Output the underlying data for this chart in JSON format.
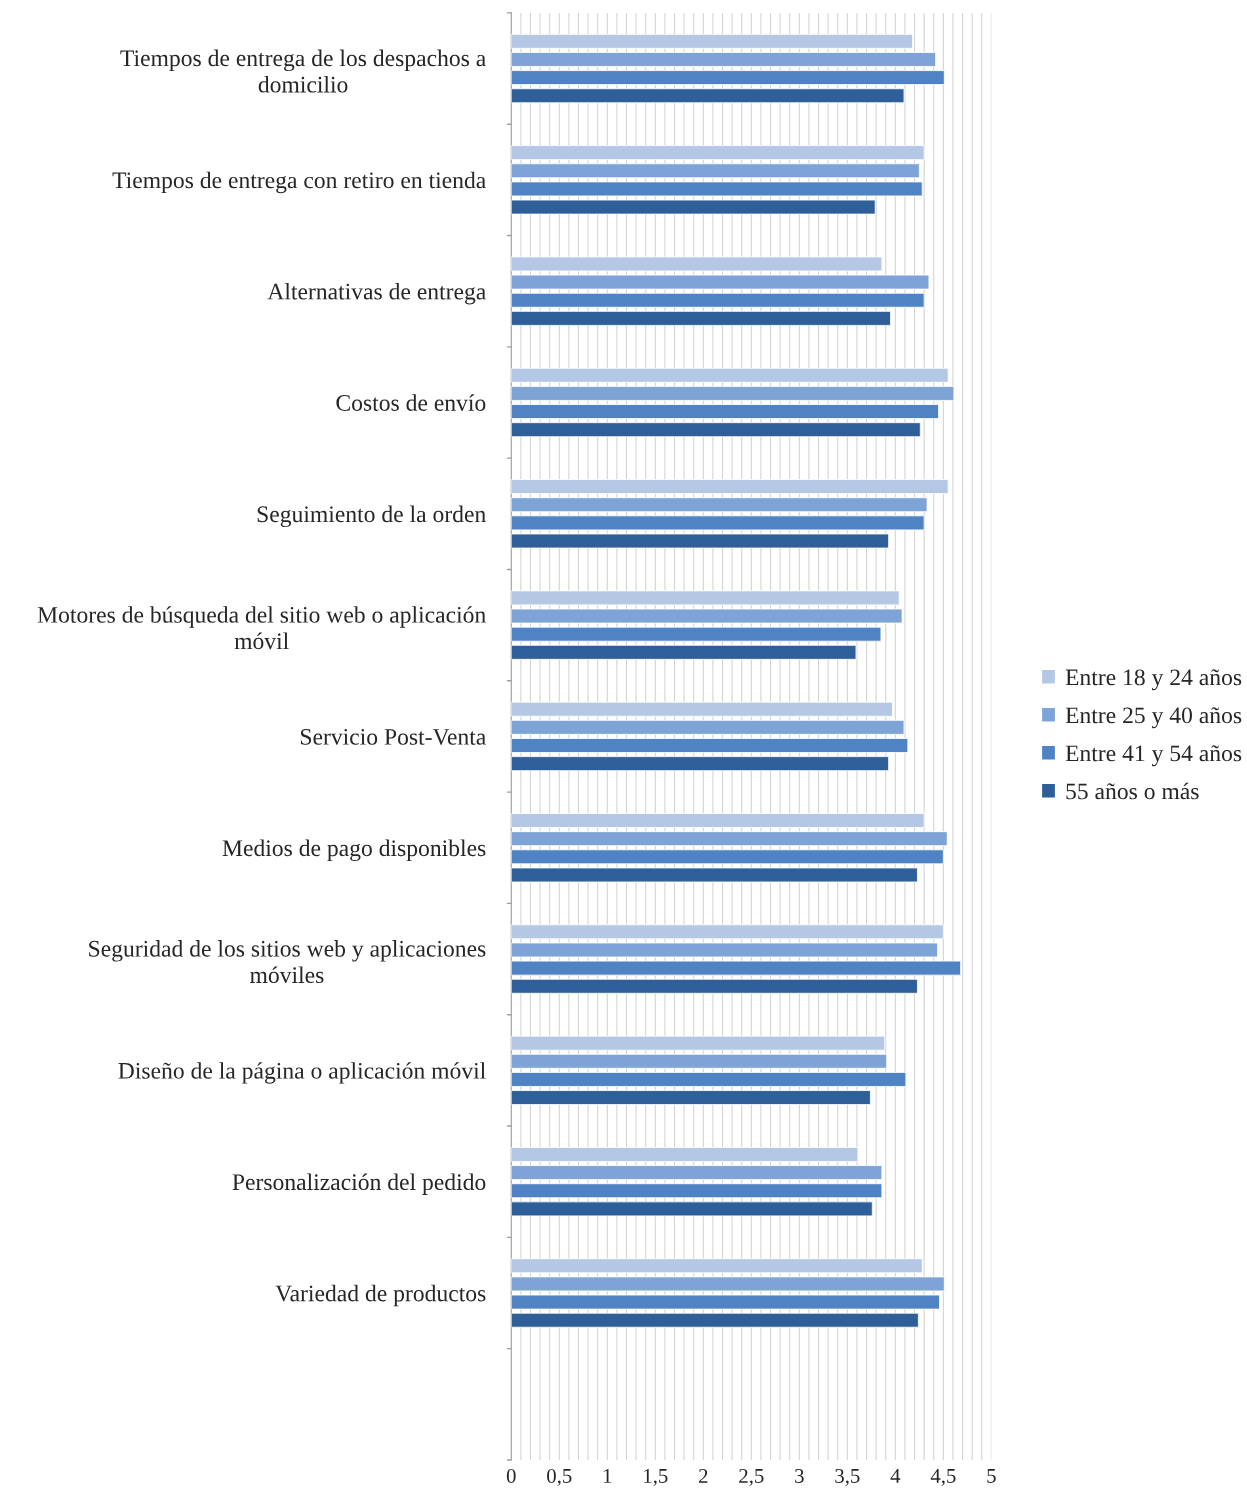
{
  "chart_data": {
    "type": "bar",
    "orientation": "horizontal",
    "categories": [
      "Tiempos de entrega de los despachos a\ndomicilio",
      "Tiempos de entrega con retiro en tienda",
      "Alternativas de entrega",
      "Costos de envío",
      "Seguimiento de la orden",
      "Motores de búsqueda del sitio web o aplicación\nmóvil",
      "Servicio Post-Venta",
      "Medios de pago disponibles",
      "Seguridad de los sitios web y aplicaciones\nmóviles",
      "Diseño de la página o aplicación móvil",
      "Personalización del pedido",
      "Variedad de productos",
      null
    ],
    "series": [
      {
        "name": "Entre 18 y 24 años",
        "color": "#b4c8e6",
        "values": [
          4.18,
          4.3,
          3.86,
          4.55,
          4.55,
          4.04,
          3.97,
          4.3,
          4.5,
          3.89,
          3.61,
          4.28,
          null
        ]
      },
      {
        "name": "Entre 25 y 40 años",
        "color": "#7ea3d6",
        "values": [
          4.42,
          4.25,
          4.35,
          4.61,
          4.33,
          4.07,
          4.09,
          4.54,
          4.44,
          3.91,
          3.86,
          4.51,
          null
        ]
      },
      {
        "name": "Entre 41 y 54 años",
        "color": "#4f83c4",
        "values": [
          4.51,
          4.28,
          4.3,
          4.45,
          4.3,
          3.85,
          4.13,
          4.5,
          4.68,
          4.11,
          3.86,
          4.46,
          null
        ]
      },
      {
        "name": "55 años o más",
        "color": "#2f5f98",
        "values": [
          4.09,
          3.79,
          3.95,
          4.26,
          3.93,
          3.59,
          3.93,
          4.23,
          4.23,
          3.74,
          3.76,
          4.24,
          null
        ]
      }
    ],
    "xlim": [
      0,
      5
    ],
    "xticks": [
      0,
      {
        "value": 0.1,
        "label": null
      },
      {
        "value": 0.2,
        "label": null
      },
      {
        "value": 0.3,
        "label": null
      },
      {
        "value": 0.4,
        "label": null
      },
      {
        "value": 0.5,
        "label": "0,5"
      },
      {
        "value": 0.6,
        "label": null
      },
      {
        "value": 0.7,
        "label": null
      },
      {
        "value": 0.8,
        "label": null
      },
      {
        "value": 0.9,
        "label": null
      },
      1,
      {
        "value": 1.1,
        "label": null
      },
      {
        "value": 1.2,
        "label": null
      },
      {
        "value": 1.3,
        "label": null
      },
      {
        "value": 1.4,
        "label": null
      },
      {
        "value": 1.5,
        "label": "1,5"
      },
      {
        "value": 1.6,
        "label": null
      },
      {
        "value": 1.7,
        "label": null
      },
      {
        "value": 1.8,
        "label": null
      },
      {
        "value": 1.9,
        "label": null
      },
      2,
      {
        "value": 2.1,
        "label": null
      },
      {
        "value": 2.2,
        "label": null
      },
      {
        "value": 2.3,
        "label": null
      },
      {
        "value": 2.4,
        "label": null
      },
      {
        "value": 2.5,
        "label": "2,5"
      },
      {
        "value": 2.6,
        "label": null
      },
      {
        "value": 2.7,
        "label": null
      },
      {
        "value": 2.8,
        "label": null
      },
      {
        "value": 2.9,
        "label": null
      },
      3,
      {
        "value": 3.1,
        "label": null
      },
      {
        "value": 3.2,
        "label": null
      },
      {
        "value": 3.3,
        "label": null
      },
      {
        "value": 3.4,
        "label": null
      },
      {
        "value": 3.5,
        "label": "3,5"
      },
      {
        "value": 3.6,
        "label": null
      },
      {
        "value": 3.7,
        "label": null
      },
      {
        "value": 3.8,
        "label": null
      },
      {
        "value": 3.9,
        "label": null
      },
      4,
      {
        "value": 4.1,
        "label": null
      },
      {
        "value": 4.2,
        "label": null
      },
      {
        "value": 4.3,
        "label": null
      },
      {
        "value": 4.4,
        "label": null
      },
      {
        "value": 4.5,
        "label": "4,5"
      },
      {
        "value": 4.6,
        "label": null
      },
      {
        "value": 4.7,
        "label": null
      },
      {
        "value": 4.8,
        "label": null
      },
      {
        "value": 4.9,
        "label": null
      },
      5
    ],
    "grid": "x",
    "legend": "right"
  }
}
